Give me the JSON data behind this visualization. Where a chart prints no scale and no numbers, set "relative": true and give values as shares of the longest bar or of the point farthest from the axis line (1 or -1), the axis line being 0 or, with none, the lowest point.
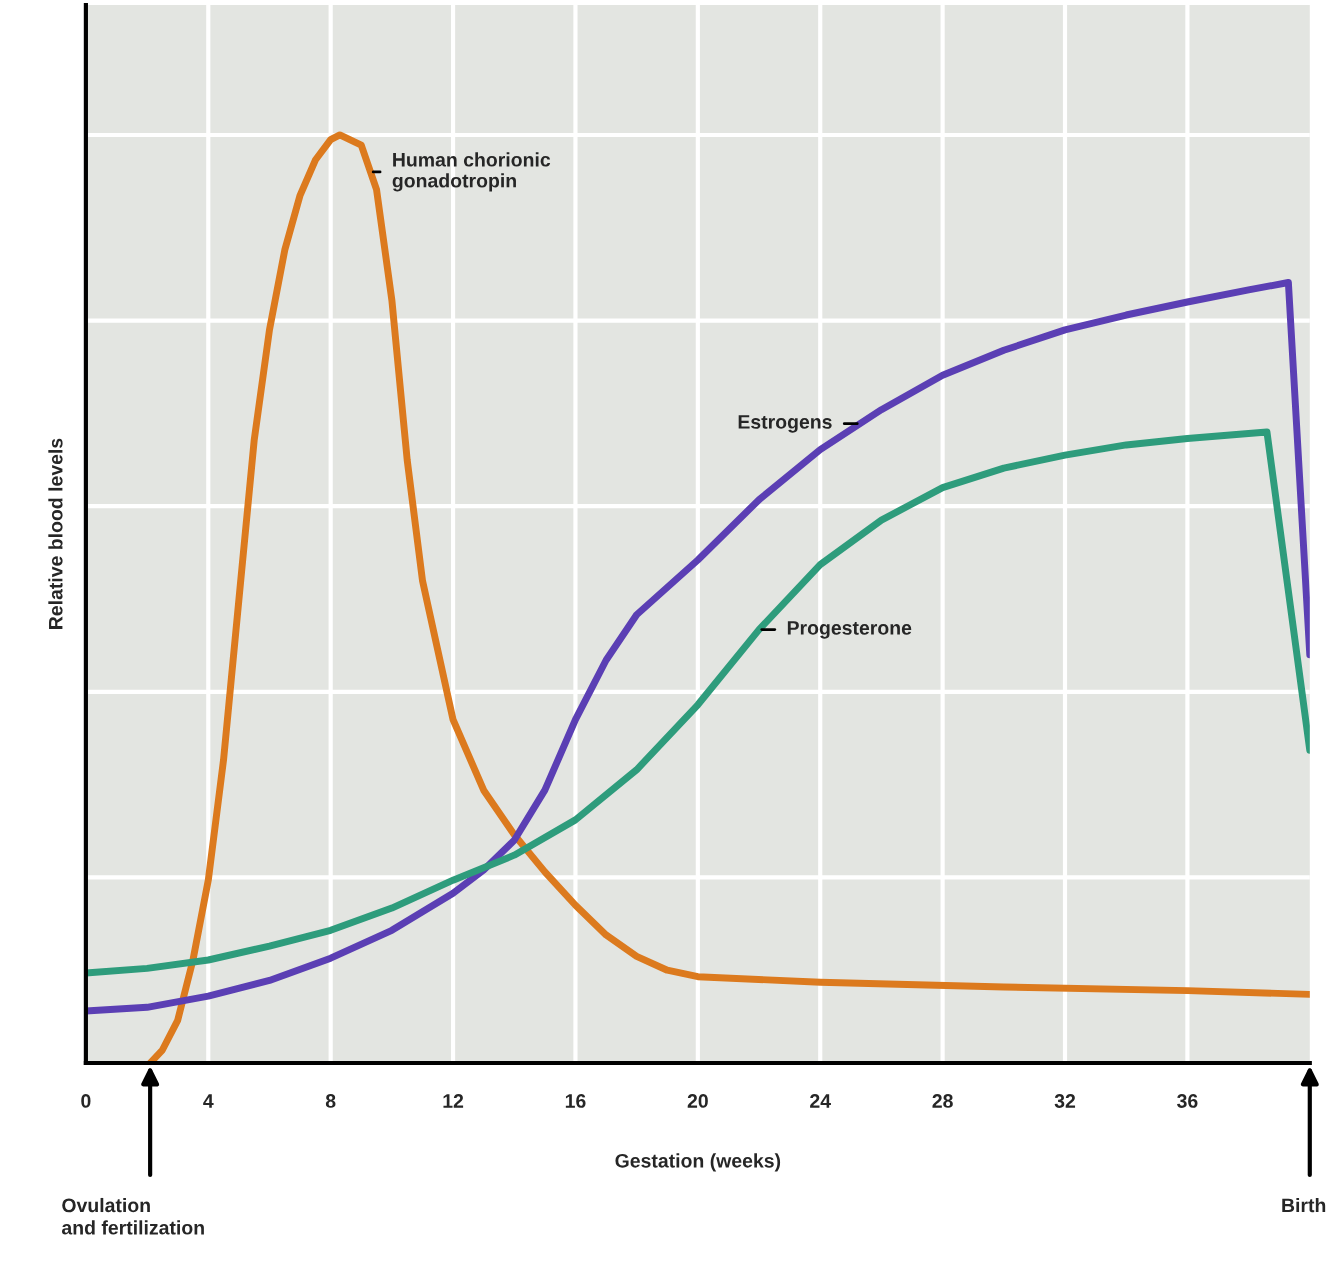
{
  "chart_data": {
    "type": "line",
    "relative": true,
    "xlabel": "Gestation (weeks)",
    "ylabel": "Relative blood levels",
    "x": [
      2.1,
      2.5,
      3,
      3.5,
      4,
      4.5,
      5,
      5.5,
      6,
      6.5,
      7,
      7.5,
      8,
      8.3,
      9,
      9.5,
      10,
      10.5,
      11,
      12,
      13,
      14,
      15,
      16,
      17,
      18,
      19,
      20,
      24,
      30,
      36,
      40
    ],
    "xlim": [
      0,
      40
    ],
    "xticks": [
      0,
      4,
      8,
      12,
      16,
      20,
      24,
      28,
      32,
      36
    ],
    "grid": true,
    "line_style": "solid",
    "marker": "none",
    "series": [
      {
        "name": "Human chorionic\ngonadotropin",
        "color": "#dc7a1e",
        "values": [
          0,
          0.014,
          0.046,
          0.111,
          0.197,
          0.327,
          0.499,
          0.671,
          0.79,
          0.876,
          0.935,
          0.973,
          0.995,
          1.0,
          0.989,
          0.941,
          0.822,
          0.65,
          0.52,
          0.37,
          0.294,
          0.246,
          0.206,
          0.17,
          0.138,
          0.115,
          0.1,
          0.093,
          0.087,
          0.082,
          0.078,
          0.074
        ]
      },
      {
        "name": "Estrogens",
        "color": "#5b3fb4",
        "x": [
          0,
          2,
          4,
          6,
          8,
          10,
          12,
          13,
          14,
          15,
          16,
          17,
          18,
          20,
          22,
          24,
          26,
          28,
          30,
          32,
          34,
          36,
          38,
          39.3,
          40
        ],
        "values": [
          0.056,
          0.06,
          0.072,
          0.089,
          0.113,
          0.143,
          0.183,
          0.208,
          0.24,
          0.294,
          0.37,
          0.434,
          0.483,
          0.542,
          0.607,
          0.661,
          0.704,
          0.741,
          0.768,
          0.79,
          0.806,
          0.82,
          0.833,
          0.841,
          0.44
        ]
      },
      {
        "name": "Progesterone",
        "color": "#2e9c7c",
        "x": [
          0,
          2,
          4,
          6,
          8,
          10,
          12,
          14,
          16,
          18,
          20,
          22,
          24,
          26,
          28,
          30,
          32,
          34,
          36,
          38.6,
          40
        ],
        "values": [
          0.097,
          0.102,
          0.111,
          0.126,
          0.143,
          0.167,
          0.197,
          0.224,
          0.262,
          0.316,
          0.386,
          0.467,
          0.537,
          0.585,
          0.62,
          0.641,
          0.655,
          0.666,
          0.673,
          0.68,
          0.337
        ]
      }
    ],
    "annotations": [
      {
        "text": "Ovulation\nand fertilization",
        "x": 2.1,
        "y": 0
      },
      "Birth"
    ]
  }
}
